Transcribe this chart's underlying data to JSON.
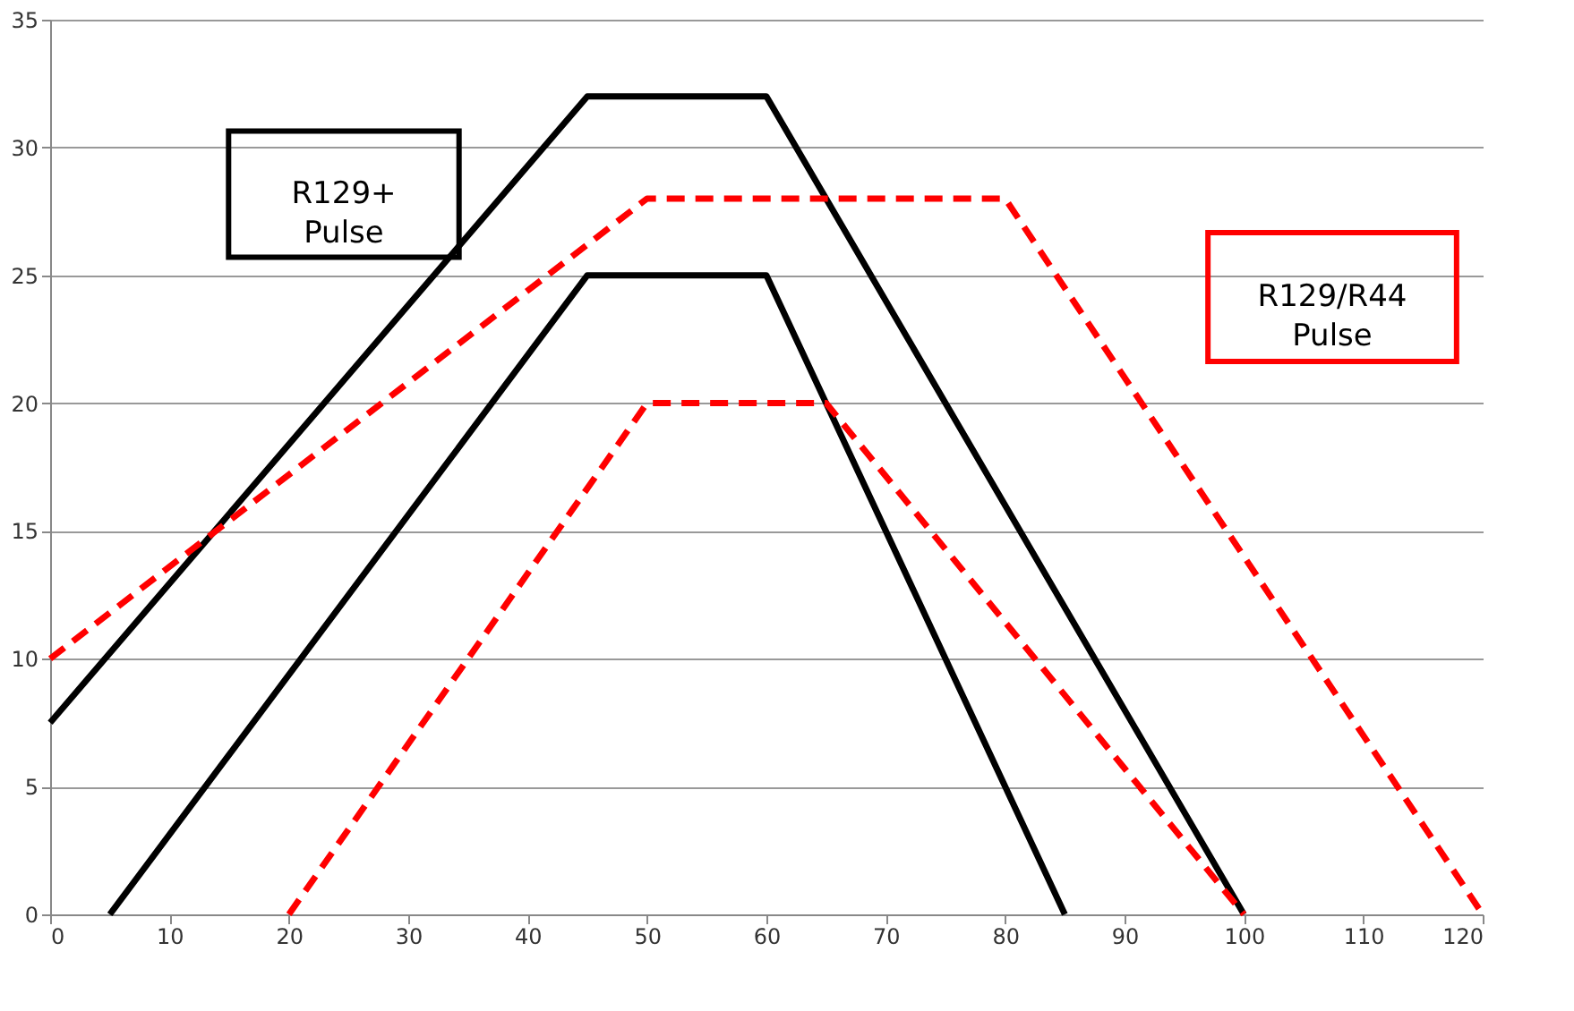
{
  "chart_data": {
    "type": "line",
    "series": [
      {
        "color": "#000000",
        "line_style": "solid",
        "x": [
          0,
          45,
          60,
          100
        ],
        "values": [
          7.5,
          32,
          32,
          0
        ]
      },
      {
        "color": "#000000",
        "line_style": "solid",
        "x": [
          5,
          45,
          60,
          85
        ],
        "values": [
          0,
          25,
          25,
          0
        ]
      },
      {
        "color": "#ff0000",
        "line_style": "dashed",
        "x": [
          0,
          50,
          80,
          120
        ],
        "values": [
          10,
          28,
          28,
          0
        ]
      },
      {
        "color": "#ff0000",
        "line_style": "dashed",
        "x": [
          20,
          50,
          65,
          100
        ],
        "values": [
          0,
          20,
          20,
          0
        ]
      }
    ],
    "annotations": [
      "R129+\nPulse",
      "R129/R44\nPulse"
    ],
    "xlim": [
      0,
      120
    ],
    "xticks": [
      0,
      10,
      20,
      30,
      40,
      50,
      60,
      70,
      80,
      90,
      100,
      110,
      120
    ],
    "ylim": [
      0,
      35
    ],
    "yticks": [
      0,
      5,
      10,
      15,
      20,
      25,
      30,
      35
    ],
    "grid": "y",
    "marker": "none"
  }
}
